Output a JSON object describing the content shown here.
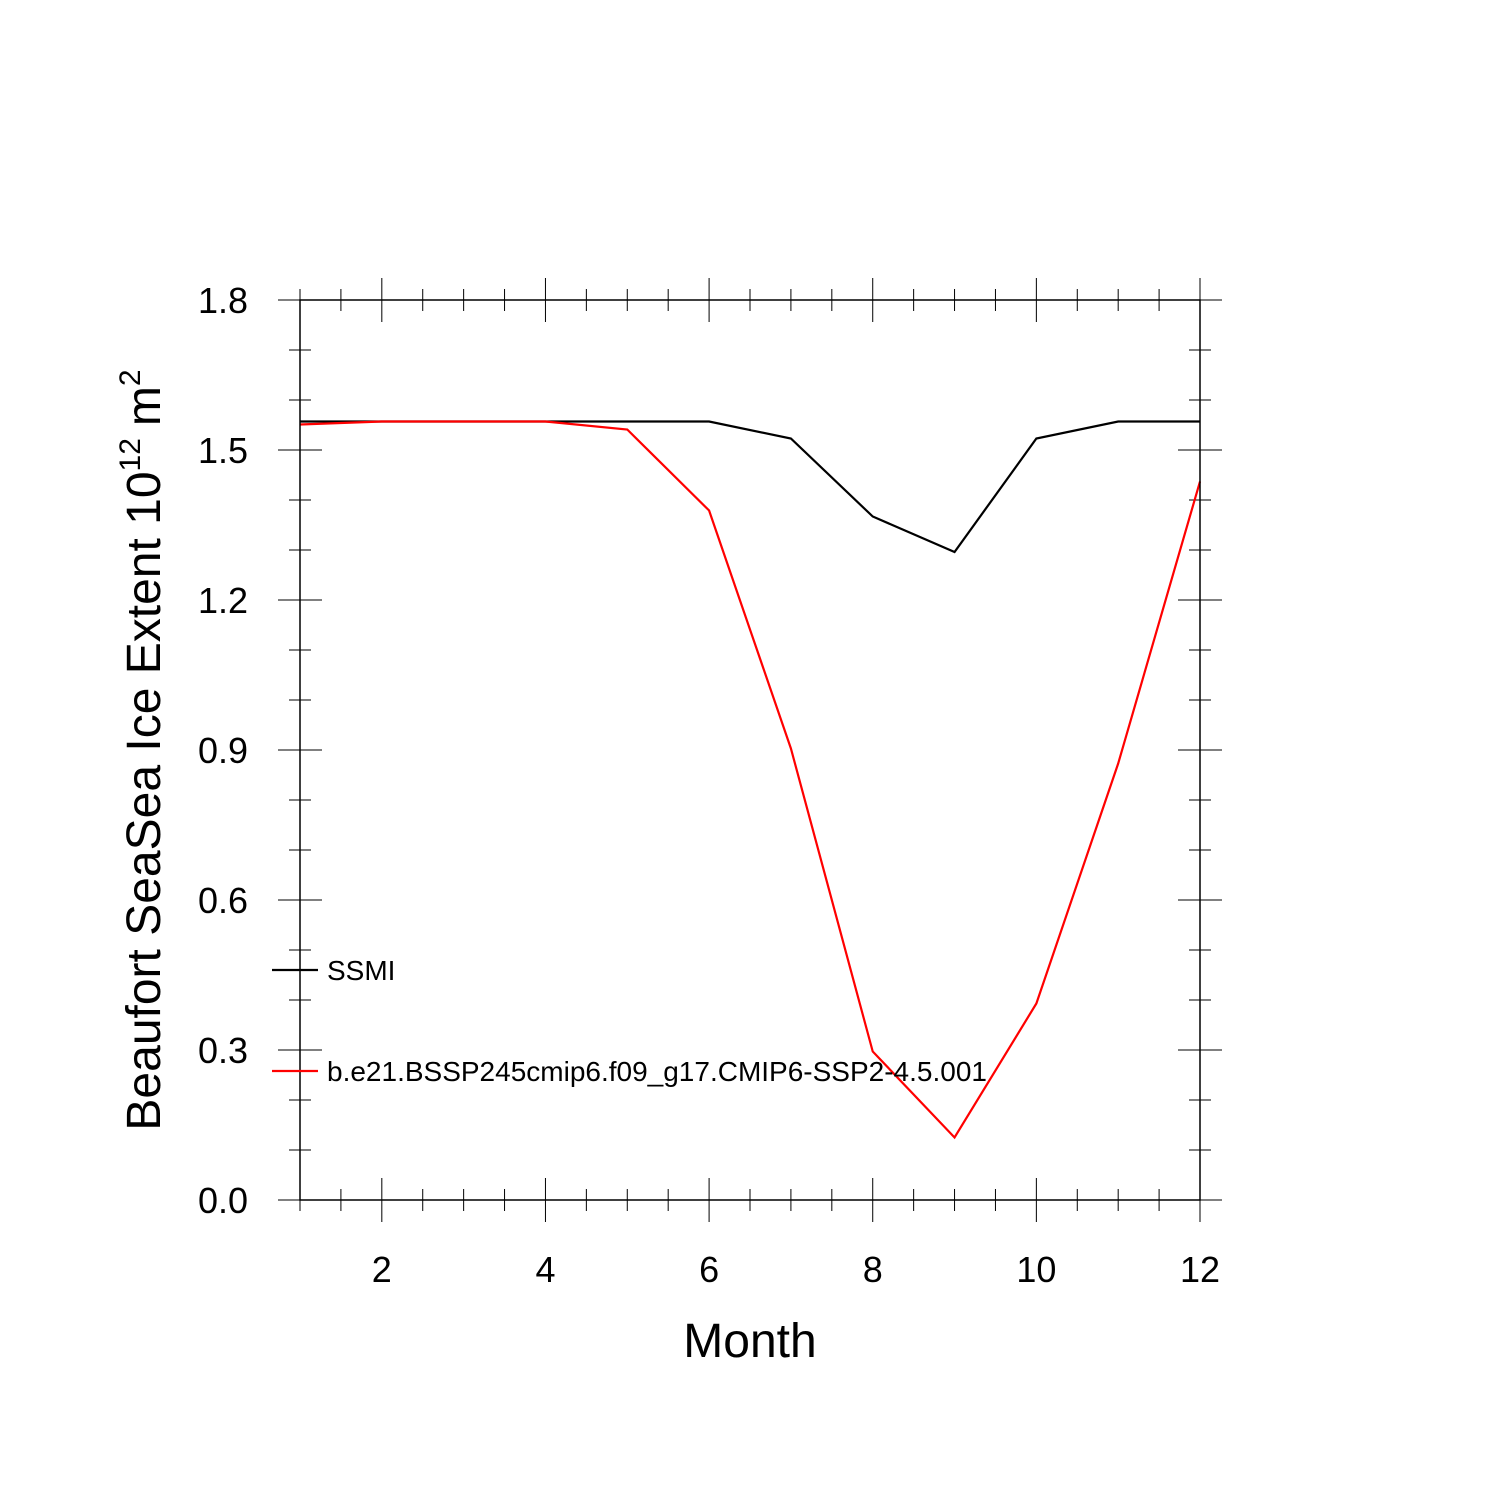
{
  "chart_data": {
    "type": "line",
    "xlabel": "Month",
    "ylabel": "Beaufort SeaSea Ice Extent 10",
    "ylabel_exponent": "12",
    "ylabel_unit": "m",
    "ylabel_unit_exponent": "2",
    "xlim": [
      1,
      12
    ],
    "ylim": [
      0.0,
      1.8
    ],
    "xticks": [
      2,
      4,
      6,
      8,
      10,
      12
    ],
    "xtick_labels": [
      "2",
      "4",
      "6",
      "8",
      "10",
      "12"
    ],
    "yticks": [
      0.0,
      0.3,
      0.6,
      0.9,
      1.2,
      1.5,
      1.8
    ],
    "ytick_labels": [
      "0.0",
      "0.3",
      "0.6",
      "0.9",
      "1.2",
      "1.5",
      "1.8"
    ],
    "grid": false,
    "legend_position": "lower-left",
    "x": [
      1,
      2,
      3,
      4,
      5,
      6,
      7,
      8,
      9,
      10,
      11,
      12
    ],
    "series": [
      {
        "name": "SSMI",
        "color": "#000000",
        "values": [
          1.557,
          1.557,
          1.557,
          1.557,
          1.557,
          1.557,
          1.523,
          1.367,
          1.296,
          1.523,
          1.557,
          1.557
        ]
      },
      {
        "name": "b.e21.BSSP245cmip6.f09_g17.CMIP6-SSP2-4.5.001",
        "color": "#ff0000",
        "values": [
          1.551,
          1.557,
          1.557,
          1.557,
          1.541,
          1.379,
          0.903,
          0.297,
          0.125,
          0.393,
          0.873,
          1.437
        ]
      }
    ]
  }
}
